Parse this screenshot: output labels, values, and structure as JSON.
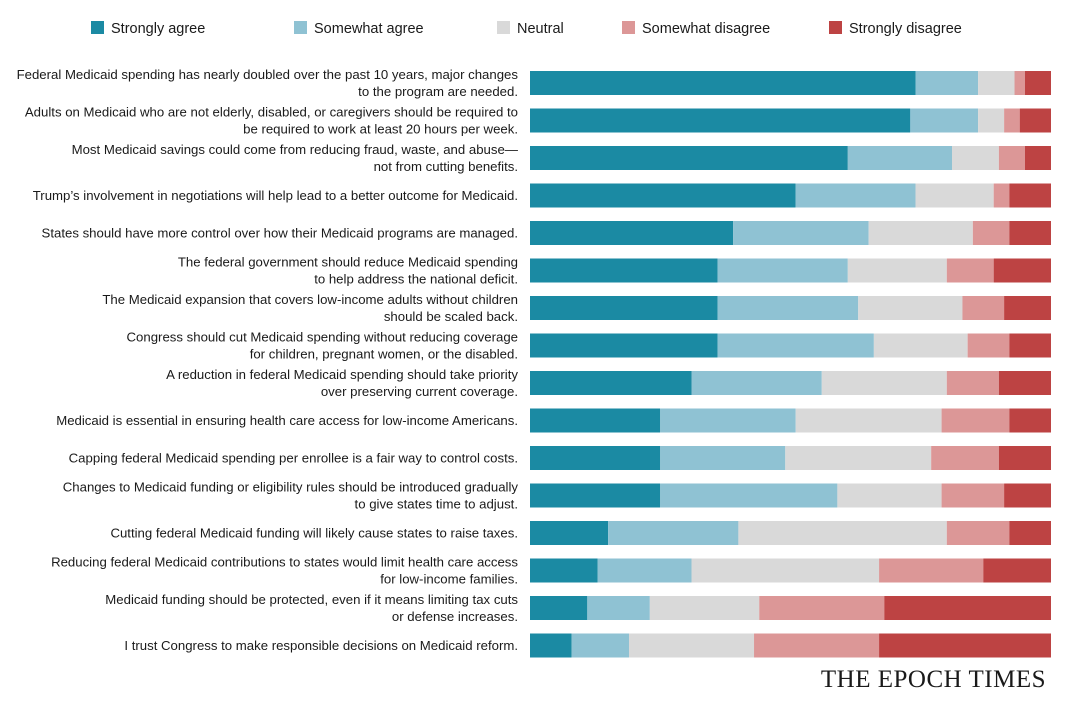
{
  "chart_data": {
    "type": "bar",
    "orientation": "horizontal",
    "stacked": true,
    "normalized_to": 100,
    "legend_placement": "top",
    "grid": false,
    "title": "",
    "xlabel": "",
    "ylabel": "",
    "xlim": [
      0,
      100
    ],
    "categories": [
      [
        "Federal Medicaid spending has nearly doubled over the past 10 years, major changes",
        "to the program are needed."
      ],
      [
        "Adults on Medicaid who are not elderly, disabled, or caregivers should be required to",
        "be required to work at least 20 hours per week."
      ],
      [
        "Most Medicaid savings could come from reducing fraud, waste, and abuse—",
        "not from cutting benefits."
      ],
      [
        "Trump’s  involvement in negotiations will help lead to a better outcome for Medicaid."
      ],
      [
        "States should have more control over how their Medicaid programs are managed."
      ],
      [
        "The federal government should reduce Medicaid spending",
        "to help address the national deficit."
      ],
      [
        "The Medicaid expansion that covers low-income adults without children",
        "should be scaled back."
      ],
      [
        "Congress  should cut Medicaid spending without reducing coverage",
        "for children, pregnant  women, or the disabled."
      ],
      [
        "A reduction in federal Medicaid spending should take priority",
        "over preserving current coverage."
      ],
      [
        "Medicaid is essential in ensuring health care access for low-income Americans."
      ],
      [
        "Capping federal Medicaid spending per enrollee is a fair way to control costs."
      ],
      [
        "Changes to Medicaid funding or eligibility rules should be introduced gradually",
        "to give states time to adjust."
      ],
      [
        "Cutting federal Medicaid funding will likely cause states to raise taxes."
      ],
      [
        "Reducing federal Medicaid contributions to states would limit health care access",
        "for low-income families."
      ],
      [
        "Medicaid funding should be protected, even if it means limiting tax cuts",
        "or defense increases."
      ],
      [
        "I trust Congress to make responsible decisions on Medicaid reform."
      ]
    ],
    "series": [
      {
        "name": "Strongly agree",
        "color": "#1b8aa3",
        "values": [
          74,
          73,
          61,
          51,
          39,
          36,
          36,
          36,
          31,
          25,
          25,
          25,
          15,
          13,
          11,
          8
        ]
      },
      {
        "name": "Somewhat agree",
        "color": "#8fc2d3",
        "values": [
          12,
          13,
          20,
          23,
          26,
          25,
          27,
          30,
          25,
          26,
          24,
          34,
          25,
          18,
          12,
          11
        ]
      },
      {
        "name": "Neutral",
        "color": "#d9d9d9",
        "values": [
          7,
          5,
          9,
          15,
          20,
          19,
          20,
          18,
          24,
          28,
          28,
          20,
          40,
          36,
          21,
          24
        ]
      },
      {
        "name": "Somewhat disagree",
        "color": "#dc9797",
        "values": [
          2,
          3,
          5,
          3,
          7,
          9,
          8,
          8,
          10,
          13,
          13,
          12,
          12,
          20,
          24,
          24
        ]
      },
      {
        "name": "Strongly disagree",
        "color": "#bd4343",
        "values": [
          5,
          6,
          5,
          8,
          8,
          11,
          9,
          8,
          10,
          8,
          10,
          9,
          8,
          13,
          32,
          33
        ]
      }
    ]
  },
  "brand": {
    "name": "THE EPOCH TIMES"
  }
}
